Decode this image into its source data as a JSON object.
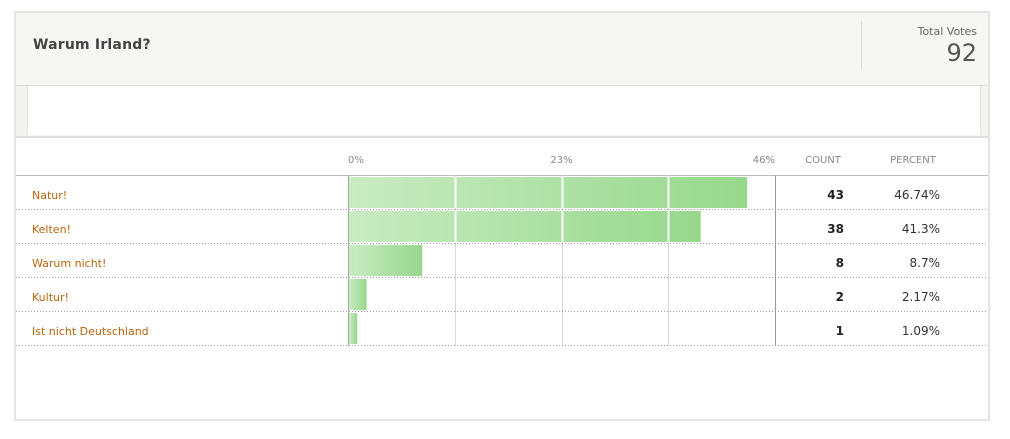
{
  "poll": {
    "question": "Warum Irland?",
    "total_votes_label": "Total Votes",
    "total_votes": "92"
  },
  "columns": {
    "count": "COUNT",
    "percent": "PERCENT"
  },
  "colors": {
    "bar_light": "#c9ebc2",
    "bar_dark": "#96d88c",
    "option_text": "#b8640a"
  },
  "chart_data": {
    "type": "bar",
    "orientation": "horizontal",
    "title": "Warum Irland?",
    "categories": [
      "Natur!",
      "Kelten!",
      "Warum nicht!",
      "Kultur!",
      "Ist nicht Deutschland"
    ],
    "values": [
      43,
      38,
      8,
      2,
      1
    ],
    "percent_labels": [
      "46.74%",
      "41.3%",
      "8.7%",
      "2.17%",
      "1.09%"
    ],
    "axis_tick_labels": [
      "0%",
      "23%",
      "46%"
    ],
    "xlim": [
      0,
      46
    ],
    "total": 92,
    "grid": true
  }
}
